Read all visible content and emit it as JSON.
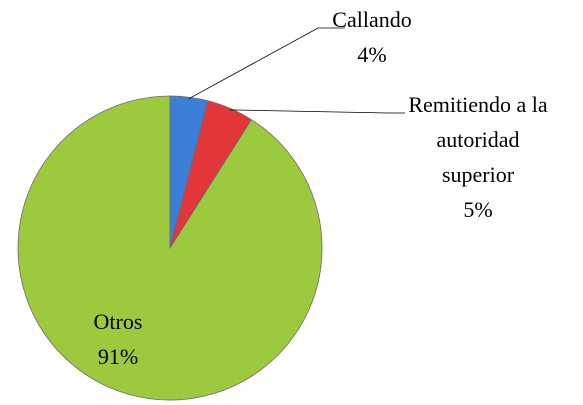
{
  "chart_data": {
    "type": "pie",
    "categories": [
      "Callando",
      "Remitiendo a la\nautoridad\nsuperior",
      "Otros"
    ],
    "values": [
      4,
      5,
      91
    ],
    "value_labels": [
      "4%",
      "5%",
      "91%"
    ],
    "colors": [
      "#3b7fd9",
      "#e2363a",
      "#9dc93f"
    ]
  }
}
